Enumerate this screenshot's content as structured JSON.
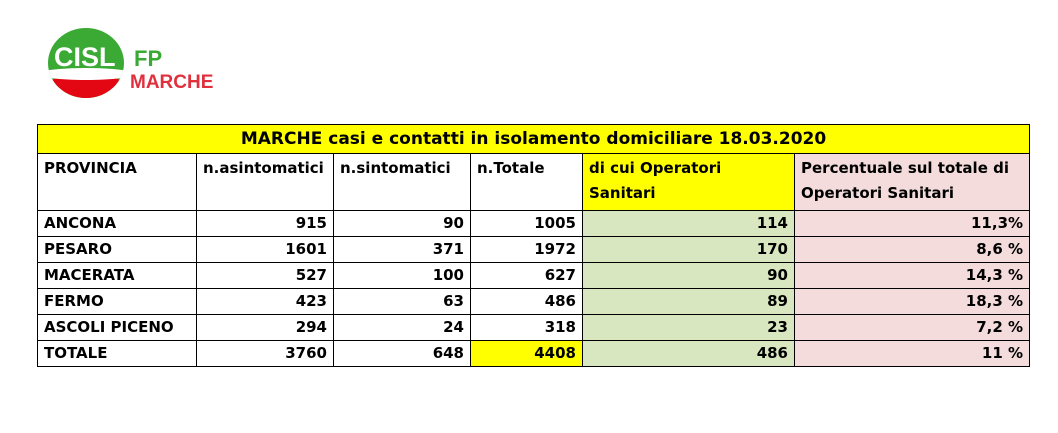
{
  "logo": {
    "brand": "CISL",
    "sub": "FP",
    "region": "MARCHE"
  },
  "table": {
    "title": "MARCHE casi e contatti in isolamento domiciliare 18.03.2020",
    "headers": [
      "PROVINCIA",
      "n.asintomatici",
      "n.sintomatici",
      "n.Totale",
      "di cui Operatori Sanitari",
      "Percentuale sul totale di Operatori Sanitari"
    ],
    "rows": [
      [
        "ANCONA",
        "915",
        "90",
        "1005",
        "114",
        "11,3%"
      ],
      [
        "PESARO",
        "1601",
        "371",
        "1972",
        "170",
        "8,6 %"
      ],
      [
        "MACERATA",
        "527",
        "100",
        "627",
        "90",
        "14,3 %"
      ],
      [
        "FERMO",
        "423",
        "63",
        "486",
        "89",
        "18,3 %"
      ],
      [
        "ASCOLI PICENO",
        "294",
        "24",
        "318",
        "23",
        "7,2 %"
      ],
      [
        "TOTALE",
        "3760",
        "648",
        "4408",
        "486",
        "11 %"
      ]
    ]
  },
  "colors": {
    "title_bg": "#ffff00",
    "operatori_bg": "#d9e7c0",
    "percentuale_bg": "#f5dcdc",
    "total_highlight": "#ffff00",
    "logo_green": "#3aaa35",
    "logo_red": "#e30613"
  }
}
